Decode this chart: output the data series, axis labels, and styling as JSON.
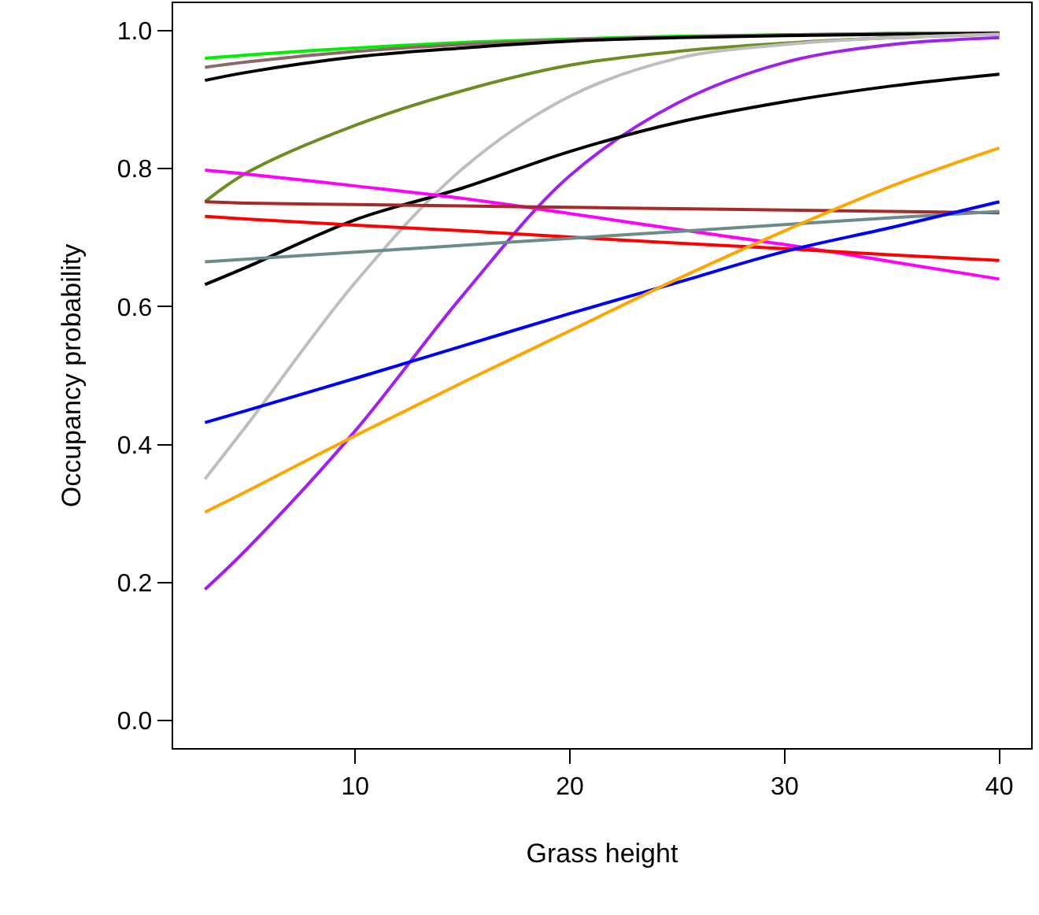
{
  "chart_data": {
    "type": "line",
    "xlabel": "Grass height",
    "ylabel": "Occupancy probability",
    "x": [
      3,
      5,
      10,
      15,
      20,
      25,
      30,
      35,
      40
    ],
    "xlim": [
      1.52,
      41.48
    ],
    "xticks": [
      10,
      20,
      30,
      40
    ],
    "ylim": [
      -0.04,
      1.04
    ],
    "yticks": [
      {
        "value": 0,
        "label": "0.0"
      },
      {
        "value": 0.2,
        "label": "0.2"
      },
      {
        "value": 0.4,
        "label": "0.4"
      },
      {
        "value": 0.6,
        "label": "0.6"
      },
      {
        "value": 0.8,
        "label": "0.8"
      },
      {
        "value": 1,
        "label": "1.0"
      }
    ],
    "marker": "none",
    "line_style": "solid",
    "series": [
      {
        "color": "#00ee00",
        "values": [
          0.96,
          0.965,
          0.975,
          0.983,
          0.988,
          0.992,
          0.994,
          0.996,
          0.997
        ]
      },
      {
        "color": "#8b6969",
        "values": [
          0.947,
          0.955,
          0.97,
          0.98,
          0.987,
          0.991,
          0.994,
          0.996,
          0.997
        ]
      },
      {
        "color": "#000000",
        "values": [
          0.928,
          0.94,
          0.962,
          0.975,
          0.985,
          0.99,
          0.993,
          0.995,
          0.996
        ]
      },
      {
        "color": "#6b8e23",
        "values": [
          0.752,
          0.795,
          0.863,
          0.913,
          0.95,
          0.97,
          0.982,
          0.99,
          0.995
        ]
      },
      {
        "color": "#bebebe",
        "values": [
          0.35,
          0.43,
          0.635,
          0.8,
          0.905,
          0.96,
          0.98,
          0.99,
          0.995
        ]
      },
      {
        "color": "#a020f0",
        "values": [
          0.19,
          0.25,
          0.42,
          0.616,
          0.79,
          0.895,
          0.954,
          0.98,
          0.99
        ]
      },
      {
        "color": "#000000",
        "values": [
          0.632,
          0.658,
          0.726,
          0.772,
          0.825,
          0.867,
          0.897,
          0.92,
          0.937
        ]
      },
      {
        "color": "#ff00ff",
        "values": [
          0.798,
          0.792,
          0.775,
          0.757,
          0.735,
          0.712,
          0.69,
          0.665,
          0.64
        ]
      },
      {
        "color": "#a52a2a",
        "values": [
          0.752,
          0.75,
          0.748,
          0.746,
          0.744,
          0.742,
          0.74,
          0.738,
          0.736
        ]
      },
      {
        "color": "#ff0000",
        "values": [
          0.731,
          0.727,
          0.718,
          0.71,
          0.701,
          0.692,
          0.684,
          0.675,
          0.667
        ]
      },
      {
        "color": "#6c8b8b",
        "values": [
          0.665,
          0.669,
          0.679,
          0.689,
          0.699,
          0.709,
          0.719,
          0.729,
          0.738
        ]
      },
      {
        "color": "#0000ff",
        "values": [
          0.432,
          0.45,
          0.496,
          0.543,
          0.59,
          0.635,
          0.68,
          0.715,
          0.752
        ]
      },
      {
        "color": "#ffa500",
        "values": [
          0.302,
          0.333,
          0.413,
          0.49,
          0.565,
          0.64,
          0.71,
          0.775,
          0.83
        ]
      }
    ]
  }
}
